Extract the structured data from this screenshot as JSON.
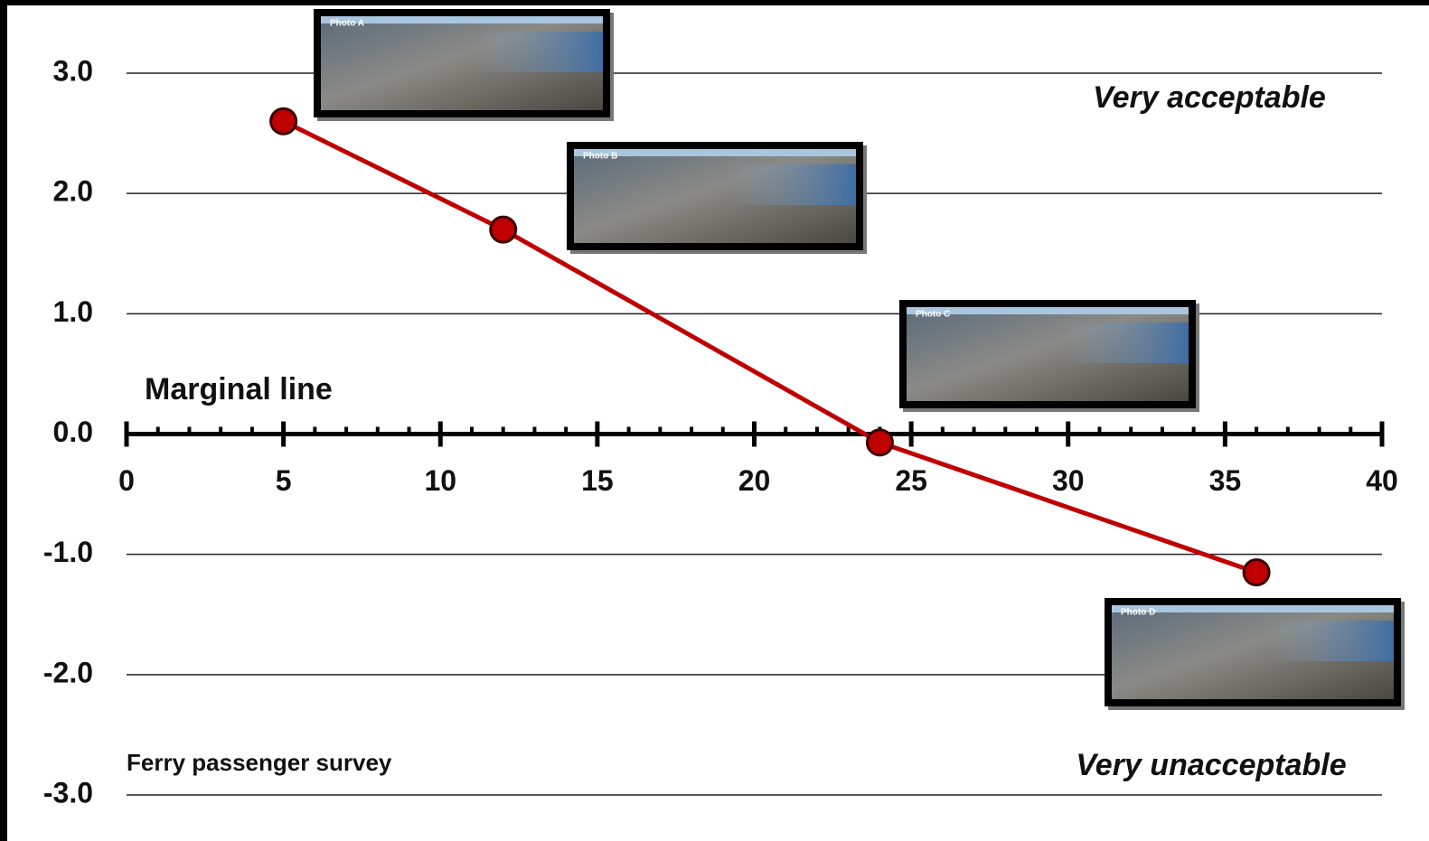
{
  "chart_data": {
    "type": "line",
    "x": [
      5,
      12,
      24,
      36
    ],
    "values": [
      2.6,
      1.7,
      -0.07,
      -1.15
    ],
    "color": "#c00000",
    "xlim": [
      0,
      40
    ],
    "xticks": [
      0,
      5,
      10,
      15,
      20,
      25,
      30,
      35,
      40
    ],
    "ylim": [
      -3,
      3
    ],
    "yticks": [
      {
        "value": 3,
        "label": "3.0"
      },
      {
        "value": 2,
        "label": "2.0"
      },
      {
        "value": 1,
        "label": "1.0"
      },
      {
        "value": 0,
        "label": "0.0"
      },
      {
        "value": -1,
        "label": "-1.0"
      },
      {
        "value": -2,
        "label": "-2.0"
      },
      {
        "value": -3,
        "label": "-3.0"
      }
    ],
    "grid": true,
    "annotations": [
      "Very acceptable",
      "Very unacceptable",
      "Marginal line",
      "Ferry passenger survey"
    ],
    "photos": [
      "Photo A",
      "Photo B",
      "Photo C",
      "Photo D"
    ]
  }
}
